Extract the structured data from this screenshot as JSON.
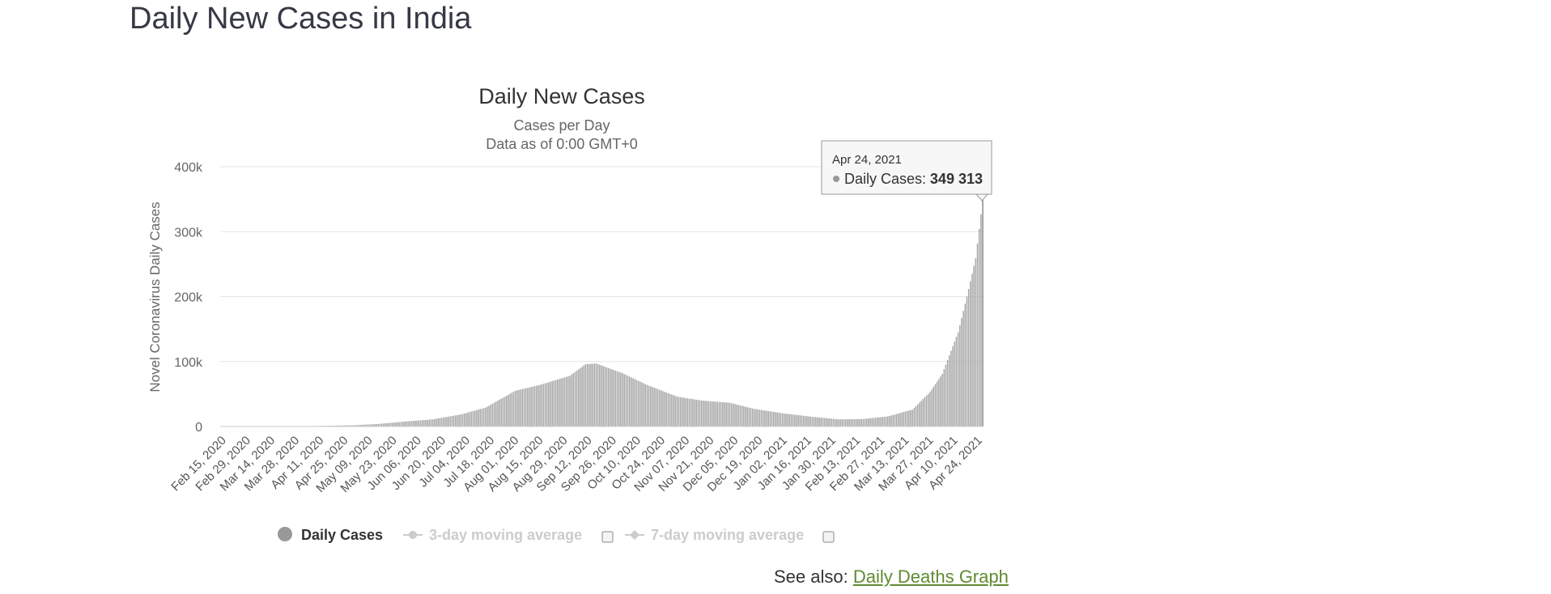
{
  "page": {
    "heading": "Daily New Cases in India",
    "see_also_prefix": "See also:",
    "see_also_link": "Daily Deaths Graph"
  },
  "colors": {
    "bar": "#a6a6a6",
    "bar_highlight": "#8c8c8c",
    "grid": "#e6e6e6",
    "text": "#333333",
    "link": "#5f8b30"
  },
  "chart_data": {
    "type": "bar",
    "title": "Daily New Cases",
    "subtitle_lines": [
      "Cases per Day",
      "Data as of 0:00 GMT+0"
    ],
    "ylabel": "Novel Coronavirus Daily Cases",
    "xlabel": "",
    "ylim": [
      0,
      400000
    ],
    "y_ticks": [
      0,
      100000,
      200000,
      300000,
      400000
    ],
    "y_tick_labels": [
      "0",
      "100k",
      "200k",
      "300k",
      "400k"
    ],
    "x_range": [
      "2020-02-15",
      "2021-04-24"
    ],
    "x_tick_labels": [
      "Feb 15, 2020",
      "Feb 29, 2020",
      "Mar 14, 2020",
      "Mar 28, 2020",
      "Apr 11, 2020",
      "Apr 25, 2020",
      "May 09, 2020",
      "May 23, 2020",
      "Jun 06, 2020",
      "Jun 20, 2020",
      "Jul 04, 2020",
      "Jul 18, 2020",
      "Aug 01, 2020",
      "Aug 15, 2020",
      "Aug 29, 2020",
      "Sep 12, 2020",
      "Sep 26, 2020",
      "Oct 10, 2020",
      "Oct 24, 2020",
      "Nov 07, 2020",
      "Nov 21, 2020",
      "Dec 05, 2020",
      "Dec 19, 2020",
      "Jan 02, 2021",
      "Jan 16, 2021",
      "Jan 30, 2021",
      "Feb 13, 2021",
      "Feb 27, 2021",
      "Mar 13, 2021",
      "Mar 27, 2021",
      "Apr 10, 2021",
      "Apr 24, 2021"
    ],
    "grid": true,
    "series": [
      {
        "name": "Daily Cases",
        "points": [
          [
            "2020-02-15",
            0
          ],
          [
            "2020-03-01",
            0
          ],
          [
            "2020-03-15",
            30
          ],
          [
            "2020-04-01",
            500
          ],
          [
            "2020-04-15",
            1000
          ],
          [
            "2020-05-01",
            1900
          ],
          [
            "2020-05-15",
            3900
          ],
          [
            "2020-06-01",
            8000
          ],
          [
            "2020-06-15",
            11000
          ],
          [
            "2020-07-01",
            18500
          ],
          [
            "2020-07-15",
            29000
          ],
          [
            "2020-08-01",
            55000
          ],
          [
            "2020-08-15",
            64000
          ],
          [
            "2020-09-01",
            78000
          ],
          [
            "2020-09-10",
            96000
          ],
          [
            "2020-09-16",
            97000
          ],
          [
            "2020-10-01",
            82000
          ],
          [
            "2020-10-15",
            64000
          ],
          [
            "2020-11-01",
            46000
          ],
          [
            "2020-11-15",
            40000
          ],
          [
            "2020-12-01",
            36500
          ],
          [
            "2020-12-15",
            27000
          ],
          [
            "2021-01-01",
            20000
          ],
          [
            "2021-01-15",
            15500
          ],
          [
            "2021-02-01",
            11000
          ],
          [
            "2021-02-15",
            11500
          ],
          [
            "2021-03-01",
            15500
          ],
          [
            "2021-03-15",
            26000
          ],
          [
            "2021-03-25",
            53000
          ],
          [
            "2021-04-01",
            81000
          ],
          [
            "2021-04-10",
            145000
          ],
          [
            "2021-04-15",
            200000
          ],
          [
            "2021-04-20",
            259000
          ],
          [
            "2021-04-24",
            349313
          ]
        ]
      }
    ],
    "tooltip": {
      "date": "Apr 24, 2021",
      "label": "Daily Cases:",
      "value": "349 313"
    },
    "legend": [
      {
        "label": "Daily Cases",
        "visible": true,
        "has_checkbox": false
      },
      {
        "label": "3-day moving average",
        "visible": false,
        "has_checkbox": true
      },
      {
        "label": "7-day moving average",
        "visible": false,
        "has_checkbox": true
      }
    ],
    "legend_position": "bottom"
  }
}
